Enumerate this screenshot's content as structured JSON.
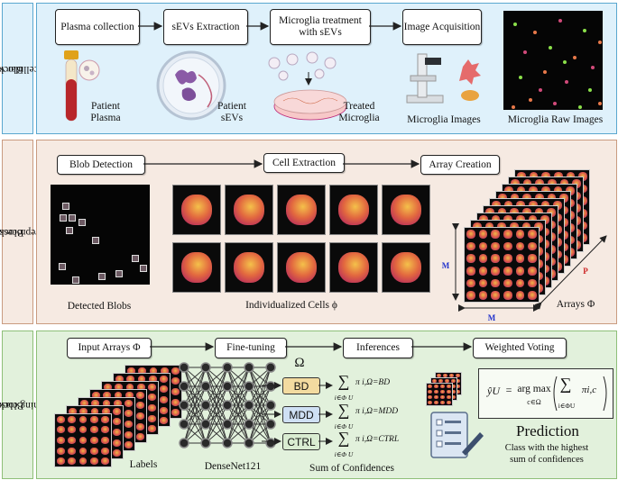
{
  "block1": {
    "side_label": "Block 1:",
    "side_label2": "Small extracellular vesicles",
    "steps": [
      "Plasma collection",
      "sEVs Extraction",
      "Microglia treatment with sEVs",
      "Image Acquisition"
    ],
    "labels": {
      "patient_plasma": "Patient Plasma",
      "patient_sevs": "Patient sEVs",
      "treated_microglia": "Treated Microglia",
      "microglia_images": "Microglia Images",
      "raw_images": "Microglia Raw Images"
    },
    "colors": {
      "background": "#dff1fb",
      "border": "#5aa7cf"
    }
  },
  "block2": {
    "side_label": "Block 2:",
    "side_label2": "Image preprocessing",
    "steps": [
      "Blob Detection",
      "Cell Extraction",
      "Array Creation"
    ],
    "labels": {
      "detected_blobs": "Detected Blobs",
      "individualized_cells": "Individualized Cells ϕ",
      "arrays": "Arrays Φ",
      "dim_m_vertical": "M",
      "dim_m_horizontal": "M",
      "dim_p": "P"
    },
    "colors": {
      "background": "#f6eae2",
      "border": "#c99b80"
    }
  },
  "block3": {
    "side_label": "Block 3:",
    "side_label2": "Deep learning classifier",
    "steps": [
      "Input Arrays Φ",
      "Fine-tuning",
      "Inferences",
      "Weighted Voting"
    ],
    "omega": "Ω",
    "classes": [
      {
        "name": "BD",
        "color": "#f3dba0",
        "subscript": "π i,Ω=BD"
      },
      {
        "name": "MDD",
        "color": "#cfe0f4",
        "subscript": "π i,Ω=MDD"
      },
      {
        "name": "CTRL",
        "color": "#d9ecd1",
        "subscript": "π i,Ω=CTRL"
      }
    ],
    "sum_index": "i∈Φ U",
    "labels": {
      "labels": "Labels",
      "network": "DenseNet121",
      "sum_conf": "Sum of Confidences",
      "prediction": "Prediction",
      "prediction_sub1": "Class with the highest",
      "prediction_sub2": "sum of confidences"
    },
    "formula": {
      "lhs": "ŷU",
      "eq": "=",
      "op": "arg max",
      "op_sub": "c∈Ω",
      "sum_sub": "i∈ΦU",
      "term": "πi,c"
    },
    "colors": {
      "background": "#e2f1dc",
      "border": "#8ebf78"
    }
  }
}
